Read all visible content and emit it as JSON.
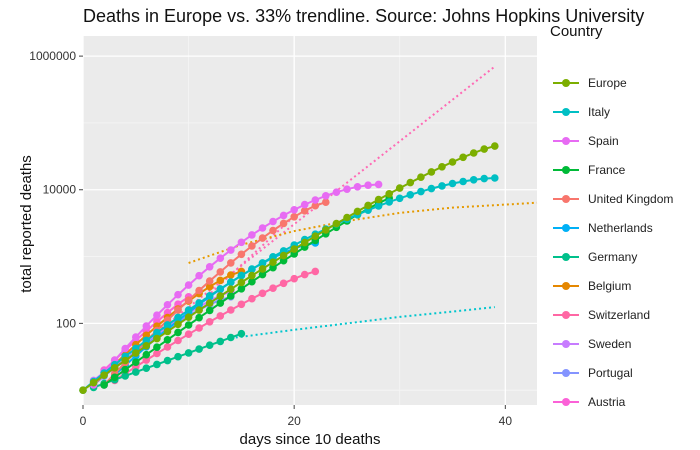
{
  "chart_data": {
    "type": "line",
    "title": "Deaths in Europe vs. 33% trendline. Source: Johns Hopkins University",
    "xlabel": "days since 10 deaths",
    "ylabel": "total reported deaths",
    "x_scale": "linear",
    "y_scale": "log",
    "xlim": [
      0,
      43
    ],
    "ylim": [
      6,
      2000000
    ],
    "x_ticks": [
      {
        "value": 0,
        "label": "0"
      },
      {
        "value": 20,
        "label": "20"
      },
      {
        "value": 40,
        "label": "40"
      }
    ],
    "y_ticks": [
      {
        "value": 100,
        "label": "100"
      },
      {
        "value": 10000,
        "label": "10000"
      },
      {
        "value": 1000000,
        "label": "1000000"
      }
    ],
    "grid": true,
    "legend_title": "Country",
    "legend_position": "right",
    "series": [
      {
        "name": "Europe",
        "color": "#7CAE00",
        "start": 0,
        "y0": 10,
        "end": 39,
        "y1": 45000,
        "curve": 1.2
      },
      {
        "name": "Italy",
        "color": "#00BFC4",
        "start": 0,
        "y0": 10,
        "end": 39,
        "y1": 15000,
        "curve": 1.6
      },
      {
        "name": "Spain",
        "color": "#E76BF3",
        "start": 1,
        "y0": 12,
        "end": 28,
        "y1": 12000,
        "curve": 1.7
      },
      {
        "name": "France",
        "color": "#00BA38",
        "start": 2,
        "y0": 12,
        "end": 29,
        "y1": 7500,
        "curve": 1.1
      },
      {
        "name": "United Kingdom",
        "color": "#F8766D",
        "start": 2,
        "y0": 12,
        "end": 23,
        "y1": 6500,
        "curve": 1.3
      },
      {
        "name": "Netherlands",
        "color": "#00B0F6",
        "start": 2,
        "y0": 12,
        "end": 22,
        "y1": 1600,
        "curve": 1.4
      },
      {
        "name": "Germany",
        "color": "#00C08B",
        "start": 1,
        "y0": 11,
        "end": 15,
        "y1": 70,
        "curve": 1.0
      },
      {
        "name": "Belgium",
        "color": "#E58700",
        "start": 1,
        "y0": 12,
        "end": 15,
        "y1": 600,
        "curve": 1.3
      },
      {
        "name": "Switzerland",
        "color": "#FF67A4",
        "start": 3,
        "y0": 14,
        "end": 22,
        "y1": 600,
        "curve": 1.2
      },
      {
        "name": "Sweden",
        "color": "#C77CFF",
        "start": 1,
        "y0": 14,
        "end": 14,
        "y1": 300,
        "curve": 1.2
      },
      {
        "name": "Portugal",
        "color": "#8494FF",
        "start": 1,
        "y0": 12,
        "end": 14,
        "y1": 250,
        "curve": 1.3
      },
      {
        "name": "Austria",
        "color": "#FB61D7",
        "start": 2,
        "y0": 20,
        "end": 10,
        "y1": 250,
        "curve": 1.1
      }
    ],
    "trendlines": [
      {
        "color": "#FF69B4",
        "points": [
          [
            0,
            10
          ],
          [
            39,
            700000
          ]
        ]
      },
      {
        "color": "#FF69B4",
        "points": [
          [
            9,
            100
          ],
          [
            20,
            4000
          ]
        ]
      },
      {
        "color": "#E59A00",
        "points": [
          [
            10,
            800
          ],
          [
            15,
            1500
          ],
          [
            20,
            2400
          ],
          [
            25,
            3400
          ],
          [
            30,
            4500
          ],
          [
            35,
            5400
          ],
          [
            40,
            6000
          ],
          [
            43,
            6400
          ]
        ]
      },
      {
        "color": "#00C5CD",
        "points": [
          [
            14,
            60
          ],
          [
            20,
            80
          ],
          [
            25,
            100
          ],
          [
            30,
            125
          ],
          [
            35,
            150
          ],
          [
            39,
            175
          ]
        ]
      }
    ]
  }
}
